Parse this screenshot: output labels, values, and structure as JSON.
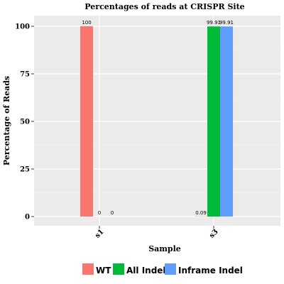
{
  "chart_data": {
    "type": "bar",
    "title": "Percentages of reads at CRISPR Site",
    "xlabel": "Sample",
    "ylabel": "Percentage of Reads",
    "categories": [
      "s1",
      "s3"
    ],
    "ylim": [
      0,
      100
    ],
    "yticks": [
      0,
      25,
      50,
      75,
      100
    ],
    "grid": true,
    "legend_position": "bottom",
    "series": [
      {
        "name": "WT",
        "color": "#F8766D",
        "values": [
          100,
          0.09
        ],
        "labels": [
          "100",
          "0.09"
        ]
      },
      {
        "name": "All Indel",
        "color": "#00BA38",
        "values": [
          0,
          99.91
        ],
        "labels": [
          "0",
          "99.91"
        ]
      },
      {
        "name": "Inframe Indel",
        "color": "#619CFF",
        "values": [
          0,
          99.91
        ],
        "labels": [
          "0",
          "99.91"
        ]
      }
    ]
  }
}
